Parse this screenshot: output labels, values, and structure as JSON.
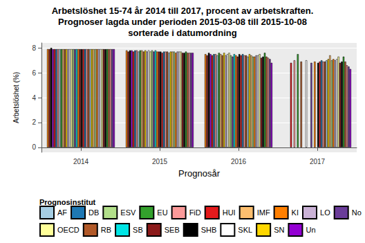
{
  "chart_data": {
    "type": "bar",
    "title": "Arbetslöshet 15-74 år 2014 till 2017, procent av arbetskraften.\nPrognoser lagda under perioden 2015-03-08 till 2015-10-08\nsorterade i datumordning",
    "x_label": "Prognosår",
    "y_label": "Arbetslöshet (%)",
    "legend_title": "Prognosinstitut",
    "legend": "bottom",
    "grid": true,
    "categories": [
      "2014",
      "2015",
      "2016",
      "2017"
    ],
    "ylim": [
      -0.4,
      8.4
    ],
    "yticks": [
      0,
      2,
      4,
      6,
      8
    ],
    "series": [
      {
        "name": "KI",
        "color": "#ff7f00",
        "values": [
          7.9,
          7.8,
          7.5,
          null
        ]
      },
      {
        "name": "SEB",
        "color": "#8b1a1a",
        "values": [
          7.9,
          7.7,
          7.4,
          null
        ]
      },
      {
        "name": "SHB",
        "color": "#000000",
        "values": [
          8.0,
          7.8,
          7.6,
          null
        ]
      },
      {
        "name": "Un",
        "color": "#9400d3",
        "values": [
          7.9,
          7.8,
          7.5,
          null
        ]
      },
      {
        "name": "HUI",
        "color": "#e31a1c",
        "values": [
          7.9,
          7.7,
          7.4,
          6.8
        ]
      },
      {
        "name": "DB",
        "color": "#1f78b4",
        "values": [
          7.9,
          7.8,
          7.5,
          null
        ]
      },
      {
        "name": "FiD",
        "color": "#fb9a99",
        "values": [
          7.9,
          7.8,
          7.5,
          7.0
        ]
      },
      {
        "name": "AF",
        "color": "#a6cee3",
        "values": [
          7.9,
          7.7,
          7.4,
          null
        ]
      },
      {
        "name": "EU",
        "color": "#33a02c",
        "values": [
          7.9,
          7.8,
          7.6,
          7.5
        ]
      },
      {
        "name": "IMF",
        "color": "#fdbf6f",
        "values": [
          7.9,
          7.8,
          7.5,
          null
        ]
      },
      {
        "name": "RB",
        "color": "#b15928",
        "values": [
          7.9,
          7.7,
          7.4,
          6.9
        ]
      },
      {
        "name": "SN",
        "color": "#ffd700",
        "values": [
          7.9,
          7.8,
          7.6,
          null
        ]
      },
      {
        "name": "LO",
        "color": "#cab2d6",
        "values": [
          7.9,
          7.7,
          7.4,
          null
        ]
      },
      {
        "name": "SKL",
        "color": "#ffffff",
        "values": [
          7.9,
          7.8,
          7.5,
          7.0
        ]
      },
      {
        "name": "OECD",
        "color": "#ffff99",
        "values": [
          7.9,
          7.7,
          7.6,
          null
        ]
      },
      {
        "name": "ESV",
        "color": "#b2df8a",
        "values": [
          7.9,
          7.8,
          7.4,
          null
        ]
      },
      {
        "name": "No",
        "color": "#6a3d9a",
        "values": [
          7.9,
          7.7,
          7.3,
          6.8
        ]
      },
      {
        "name": "SB",
        "color": "#00e5e5",
        "values": [
          7.9,
          7.8,
          7.5,
          null
        ]
      },
      {
        "name": "KI",
        "color": "#ff7f00",
        "values": [
          7.9,
          7.7,
          7.4,
          6.9
        ]
      },
      {
        "name": "SEB",
        "color": "#8b1a1a",
        "values": [
          7.9,
          7.7,
          7.3,
          null
        ]
      },
      {
        "name": "SHB",
        "color": "#000000",
        "values": [
          7.9,
          7.7,
          7.5,
          6.8
        ]
      },
      {
        "name": "HUI",
        "color": "#e31a1c",
        "values": [
          7.9,
          7.6,
          7.4,
          6.9
        ]
      },
      {
        "name": "DB",
        "color": "#1f78b4",
        "values": [
          7.9,
          7.7,
          7.5,
          7.0
        ]
      },
      {
        "name": "FiD",
        "color": "#fb9a99",
        "values": [
          7.9,
          7.7,
          7.4,
          6.9
        ]
      },
      {
        "name": "RB",
        "color": "#b15928",
        "values": [
          7.9,
          7.7,
          7.4,
          6.9
        ]
      },
      {
        "name": "AF",
        "color": "#a6cee3",
        "values": [
          7.9,
          7.6,
          7.3,
          7.0
        ]
      },
      {
        "name": "SN",
        "color": "#ffd700",
        "values": [
          7.9,
          7.7,
          7.5,
          7.1
        ]
      },
      {
        "name": "IMF",
        "color": "#fdbf6f",
        "values": [
          7.9,
          7.7,
          7.4,
          7.4
        ]
      },
      {
        "name": "ESV",
        "color": "#b2df8a",
        "values": [
          7.9,
          7.7,
          7.3,
          7.0
        ]
      },
      {
        "name": "KI",
        "color": "#ff7f00",
        "values": [
          7.9,
          7.6,
          7.3,
          7.1
        ]
      },
      {
        "name": "LO",
        "color": "#cab2d6",
        "values": [
          7.9,
          7.7,
          7.4,
          7.0
        ]
      },
      {
        "name": "SKL",
        "color": "#ffffff",
        "values": [
          7.9,
          7.7,
          7.4,
          7.1
        ]
      },
      {
        "name": "OECD",
        "color": "#ffff99",
        "values": [
          7.9,
          7.7,
          7.5,
          7.3
        ]
      },
      {
        "name": "SEB",
        "color": "#8b1a1a",
        "values": [
          7.9,
          7.6,
          7.2,
          6.8
        ]
      },
      {
        "name": "SHB",
        "color": "#000000",
        "values": [
          7.9,
          7.6,
          7.3,
          6.9
        ]
      },
      {
        "name": "EU",
        "color": "#33a02c",
        "values": [
          7.9,
          7.7,
          7.6,
          7.3
        ]
      },
      {
        "name": "RB",
        "color": "#b15928",
        "values": [
          7.9,
          7.6,
          7.3,
          6.9
        ]
      },
      {
        "name": "FiD",
        "color": "#fb9a99",
        "values": [
          7.9,
          7.6,
          7.2,
          6.6
        ]
      },
      {
        "name": "No",
        "color": "#6a3d9a",
        "values": [
          7.9,
          7.6,
          7.1,
          6.5
        ]
      },
      {
        "name": "Un",
        "color": "#9400d3",
        "values": [
          7.9,
          7.6,
          6.8,
          6.3
        ]
      }
    ]
  }
}
